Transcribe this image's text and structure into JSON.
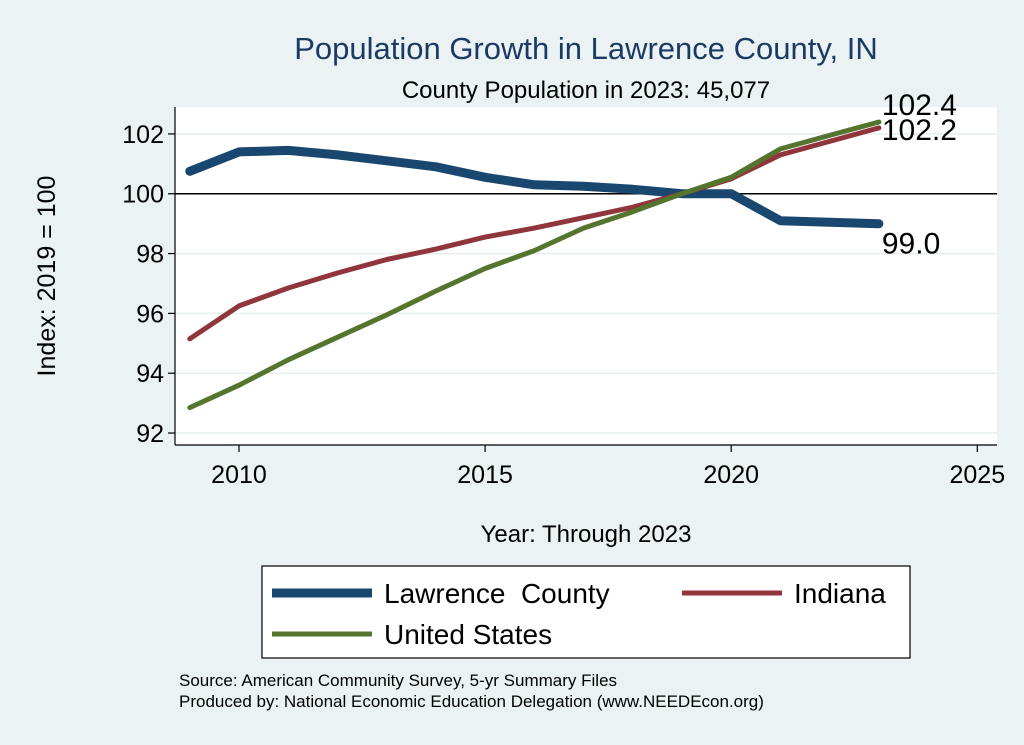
{
  "chart_data": {
    "type": "line",
    "title": "Population Growth in Lawrence County, IN",
    "subtitle": "County Population in 2023: 45,077",
    "xlabel": "Year: Through 2023",
    "ylabel": "Index: 2019 = 100",
    "xlim": [
      2008.7,
      2025.4
    ],
    "ylim": [
      91.6,
      102.9
    ],
    "xticks": [
      2010,
      2015,
      2020,
      2025
    ],
    "yticks": [
      92,
      94,
      96,
      98,
      100,
      102
    ],
    "reference_line": 100,
    "grid": true,
    "legend_position": "bottom",
    "x": [
      2009,
      2010,
      2011,
      2012,
      2013,
      2014,
      2015,
      2016,
      2017,
      2018,
      2019,
      2020,
      2021,
      2022,
      2023
    ],
    "series": [
      {
        "name": "Lawrence  County",
        "color": "#1a476f",
        "width": 9,
        "values": [
          100.75,
          101.4,
          101.45,
          101.3,
          101.1,
          100.9,
          100.55,
          100.3,
          100.25,
          100.15,
          100.0,
          100.0,
          99.1,
          99.05,
          99.0
        ],
        "end_label": "99.0"
      },
      {
        "name": "Indiana",
        "color": "#90353b",
        "width": 5,
        "values": [
          95.15,
          96.25,
          96.85,
          97.35,
          97.8,
          98.15,
          98.55,
          98.85,
          99.2,
          99.55,
          100.0,
          100.5,
          101.3,
          101.75,
          102.2
        ],
        "end_label": "102.2"
      },
      {
        "name": "United States",
        "color": "#55752f",
        "width": 5,
        "values": [
          92.85,
          93.6,
          94.45,
          95.2,
          95.95,
          96.75,
          97.5,
          98.1,
          98.85,
          99.4,
          100.0,
          100.55,
          101.5,
          101.95,
          102.4
        ],
        "end_label": "102.4"
      }
    ]
  },
  "source_note": "Source: American Community Survey, 5-yr Summary Files",
  "producer_note": "Produced by: National Economic Education Delegation (www.NEEDEcon.org)"
}
